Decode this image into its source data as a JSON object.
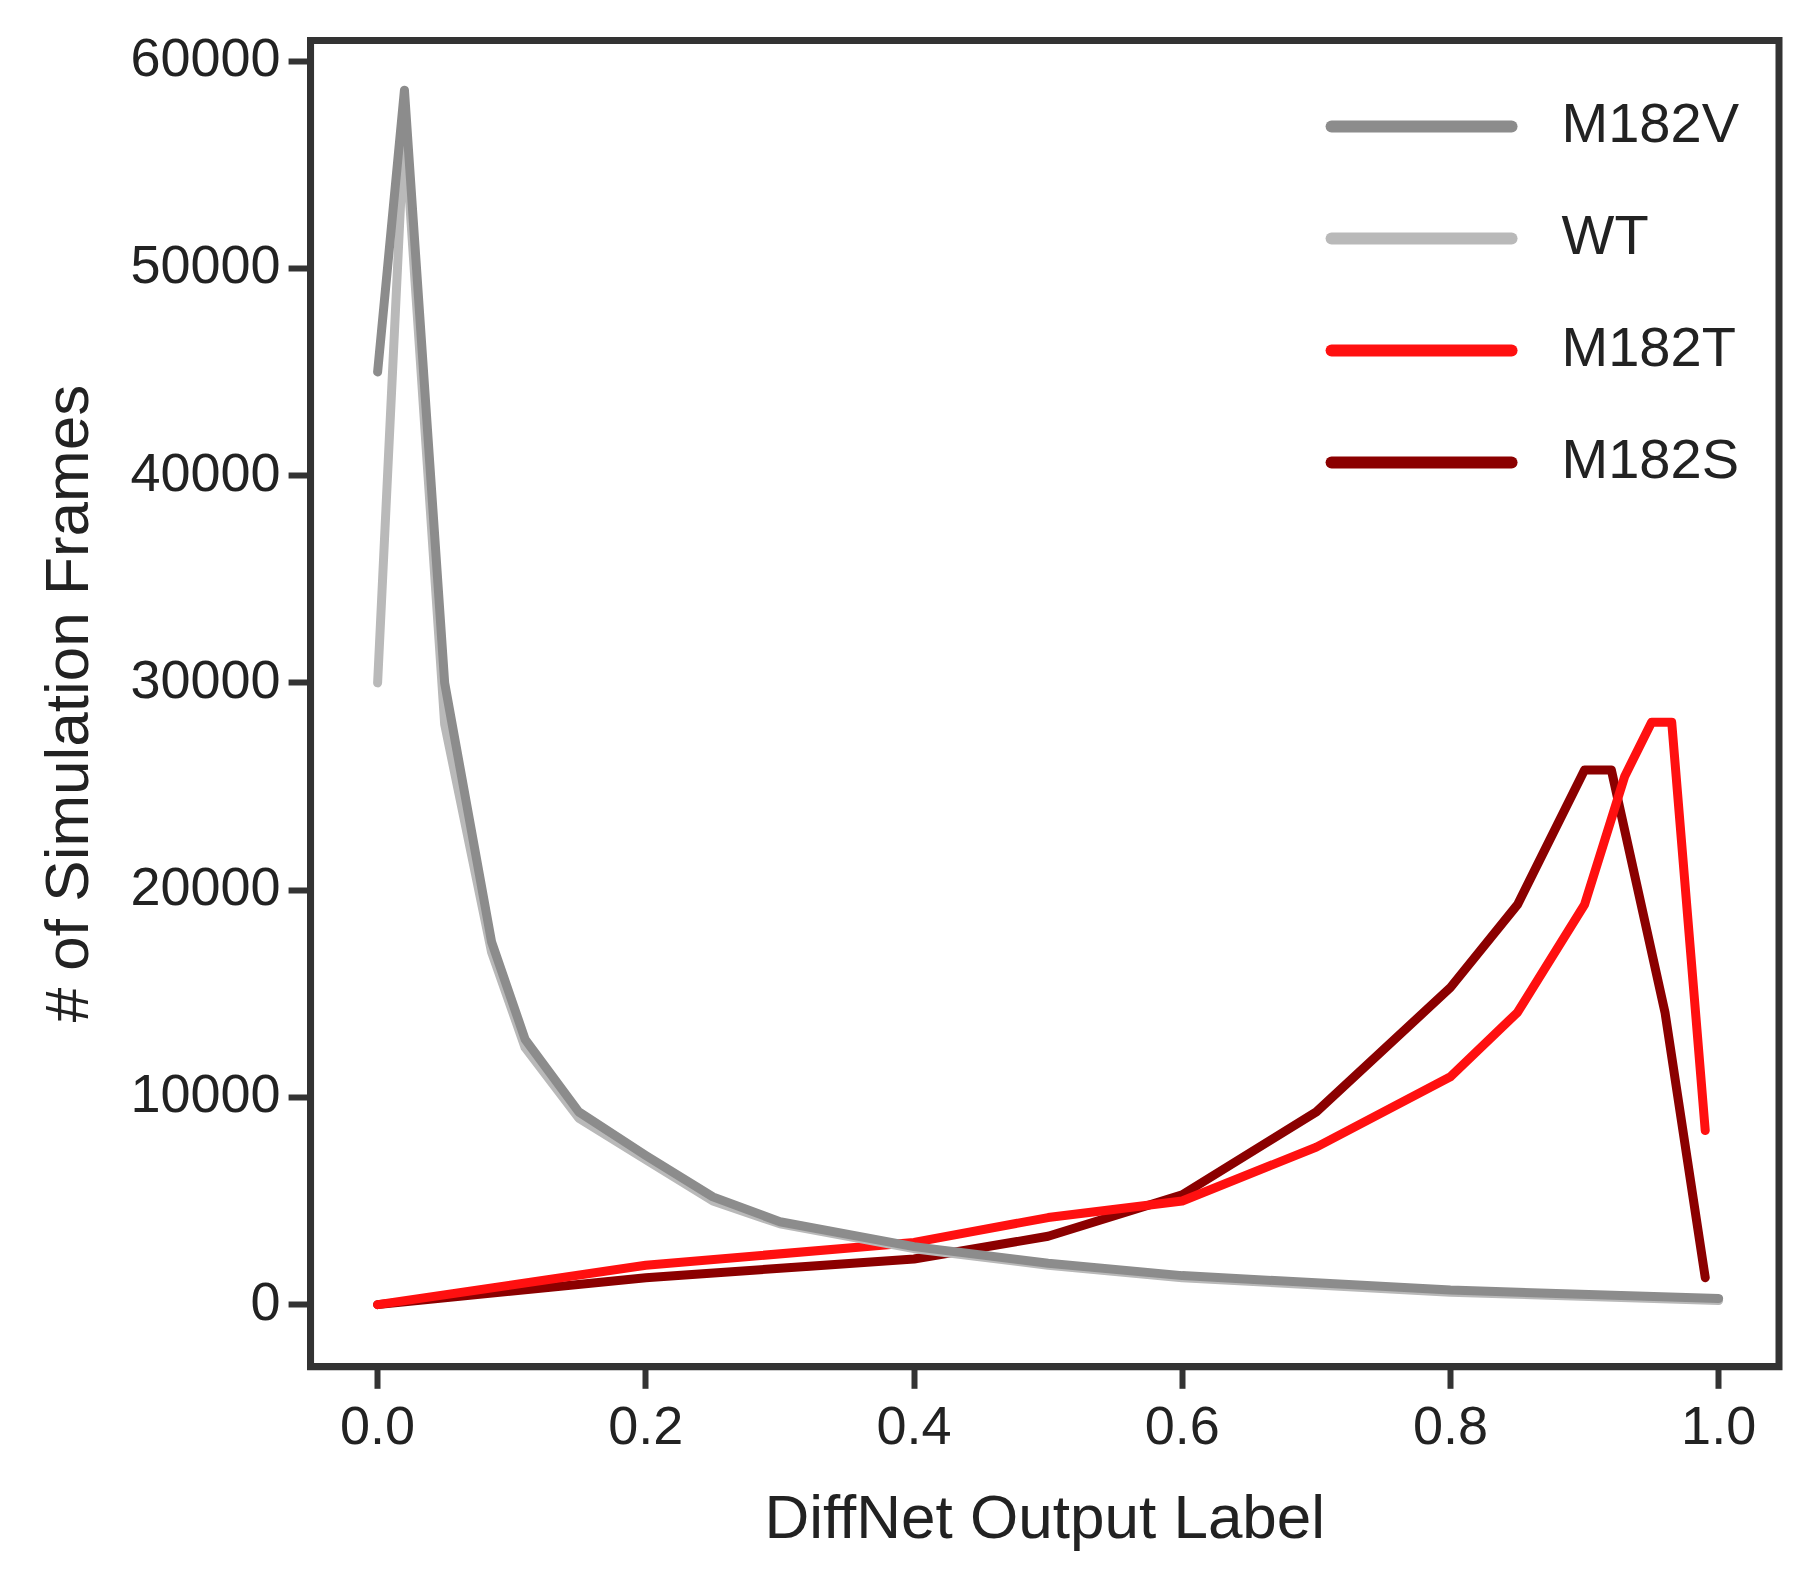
{
  "chart_data": {
    "type": "line",
    "xlabel": "DiffNet Output Label",
    "ylabel": "# of Simulation Frames",
    "xlim": [
      -0.05,
      1.045
    ],
    "ylim": [
      -3000,
      61000
    ],
    "xticks": [
      {
        "value": 0,
        "label": "0.0"
      },
      {
        "value": 0.2,
        "label": "0.2"
      },
      {
        "value": 0.4,
        "label": "0.4"
      },
      {
        "value": 0.6,
        "label": "0.6"
      },
      {
        "value": 0.8,
        "label": "0.8"
      },
      {
        "value": 1,
        "label": "1.0"
      }
    ],
    "yticks": [
      0,
      10000,
      20000,
      30000,
      40000,
      50000,
      60000
    ],
    "grid": false,
    "legend": "top right",
    "marker": "none",
    "line_style": "solid",
    "series": [
      {
        "name": "M182V",
        "color": "#8c8c8c",
        "x": [
          0,
          0.02,
          0.05,
          0.085,
          0.11,
          0.15,
          0.2,
          0.25,
          0.3,
          0.4,
          0.5,
          0.6,
          0.8,
          1.0
        ],
        "values": [
          45000,
          58600,
          30000,
          17500,
          12800,
          9300,
          7200,
          5200,
          4000,
          2800,
          2000,
          1400,
          700,
          300
        ]
      },
      {
        "name": "WT",
        "color": "#b9b9b9",
        "x": [
          0,
          0.02,
          0.05,
          0.085,
          0.11,
          0.15,
          0.2,
          0.25,
          0.3,
          0.4,
          0.5,
          0.6,
          0.8,
          1.0
        ],
        "values": [
          30000,
          57000,
          28000,
          17000,
          12400,
          9000,
          7000,
          5000,
          3900,
          2700,
          1900,
          1300,
          600,
          200
        ]
      },
      {
        "name": "M182T",
        "color": "#ff1010",
        "x": [
          0,
          0.2,
          0.4,
          0.5,
          0.6,
          0.7,
          0.8,
          0.85,
          0.9,
          0.93,
          0.95,
          0.965,
          0.99
        ],
        "values": [
          0,
          1900,
          3000,
          4200,
          5000,
          7600,
          11000,
          14100,
          19300,
          25500,
          28100,
          28100,
          8400
        ]
      },
      {
        "name": "M182S",
        "color": "#8b0000",
        "x": [
          0,
          0.2,
          0.4,
          0.5,
          0.6,
          0.7,
          0.8,
          0.85,
          0.9,
          0.92,
          0.96,
          0.99
        ],
        "values": [
          0,
          1300,
          2200,
          3300,
          5300,
          9300,
          15300,
          19300,
          25800,
          25800,
          14100,
          1300
        ]
      }
    ]
  }
}
